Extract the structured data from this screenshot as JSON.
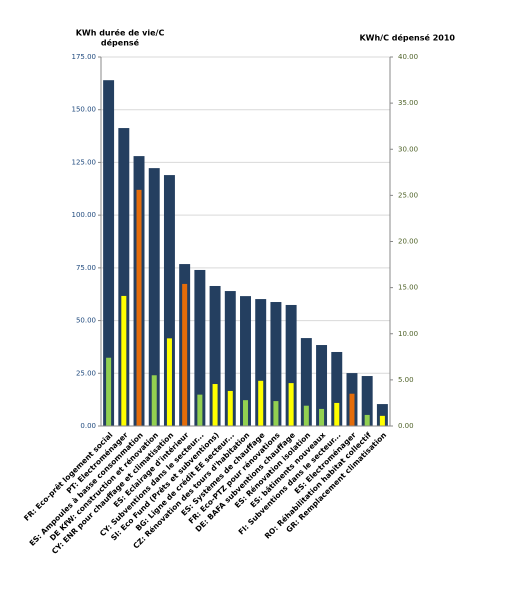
{
  "chart_data": {
    "type": "bar",
    "ylabel": [
      "KWh durée de vie/C",
      "dépensé"
    ],
    "y2label": "KWh/C dépensé 2010",
    "categories": [
      "FR: Eco-prêt logement social",
      "PT: Electroménager",
      "ES: Ampoules à basse consommation",
      "DE KfW: construction et rénovation",
      "CY: ENR pour chauffage et climatisation",
      "ES: Eclairage d'intérieur",
      "CY: Subventions dans le secteur...",
      "SI: Eco Fund (Prêts et subventions)",
      "BG: Ligne de crédit  EE secteur...",
      "CZ: Rénovation des tours d'habitation",
      "ES: Systèmes de chauffage",
      "FR: Eco-PTZ pour rénovations",
      "DE: BAFA subventions chauffage",
      "ES: Rénovation isolation",
      "ES: bâtiments nouveaux",
      "FI: Subventions dans le secteur...",
      "ES: Electroménager",
      "RO: Réhabilitation habitat collectif",
      "GR: Remplacement climatisation"
    ],
    "series": [
      {
        "axis": "y",
        "color": "#243f60",
        "values": [
          164,
          141.3,
          128,
          122.3,
          119,
          76.8,
          74,
          66.4,
          64,
          61.6,
          60.2,
          58.8,
          57.4,
          41.7,
          38.4,
          35.1,
          25.1,
          23.7,
          10.4
        ]
      },
      {
        "axis": "y2",
        "colors": [
          "#92d050",
          "#ffff00",
          "#e46c0a",
          "#92d050",
          "#ffff00",
          "#e46c0a",
          "#92d050",
          "#ffff00",
          "#ffff00",
          "#92d050",
          "#ffff00",
          "#92d050",
          "#ffff00",
          "#92d050",
          "#92d050",
          "#ffff00",
          "#e46c0a",
          "#92d050",
          "#ffff00"
        ],
        "values": [
          7.4,
          14.1,
          25.6,
          5.5,
          9.5,
          15.4,
          3.4,
          4.55,
          3.8,
          2.8,
          4.9,
          2.7,
          4.65,
          2.2,
          1.85,
          2.5,
          3.5,
          1.2,
          1.1
        ]
      }
    ],
    "ylim": [
      0,
      175
    ],
    "yticks": [
      {
        "value": 0,
        "label": "0.00"
      },
      {
        "value": 25,
        "label": "25.00"
      },
      {
        "value": 50,
        "label": "50.00"
      },
      {
        "value": 75,
        "label": "75.00"
      },
      {
        "value": 100,
        "label": "100.00"
      },
      {
        "value": 125,
        "label": "125.00"
      },
      {
        "value": 150,
        "label": "150.00"
      },
      {
        "value": 175,
        "label": "175.00"
      }
    ],
    "y2lim": [
      0,
      40
    ],
    "y2ticks": [
      {
        "value": 0,
        "label": "0.00"
      },
      {
        "value": 5,
        "label": "5.00"
      },
      {
        "value": 10,
        "label": "10.00"
      },
      {
        "value": 15,
        "label": "15.00"
      },
      {
        "value": 20,
        "label": "20.00"
      },
      {
        "value": 25,
        "label": "25.00"
      },
      {
        "value": 30,
        "label": "30.00"
      },
      {
        "value": 35,
        "label": "35.00"
      },
      {
        "value": 40,
        "label": "40.00"
      }
    ],
    "grid": true
  }
}
